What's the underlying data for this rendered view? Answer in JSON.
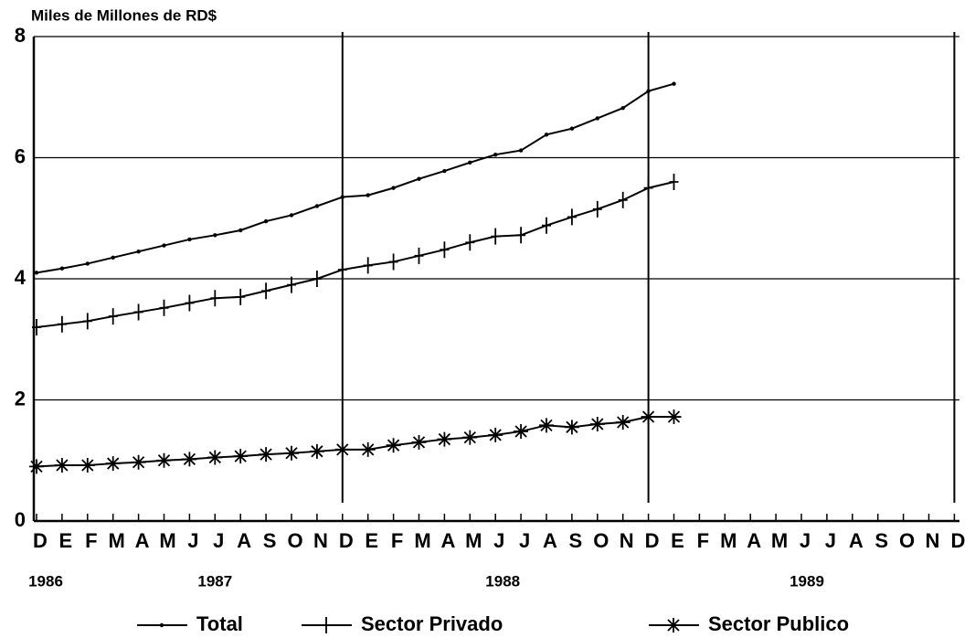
{
  "chart_data": {
    "type": "line",
    "title": "Miles de Millones de RD$",
    "categories": [
      "D",
      "E",
      "F",
      "M",
      "A",
      "M",
      "J",
      "J",
      "A",
      "S",
      "O",
      "N",
      "D",
      "E",
      "F",
      "M",
      "A",
      "M",
      "J",
      "J",
      "A",
      "S",
      "O",
      "N",
      "D",
      "E",
      "F",
      "M",
      "A",
      "M",
      "J",
      "J",
      "A",
      "S",
      "O",
      "N",
      "D"
    ],
    "year_labels": [
      "1986",
      "1987",
      "1988",
      "1989"
    ],
    "series": [
      {
        "name": "Total",
        "color": "#000000",
        "marker": "dot",
        "values": [
          4.1,
          4.17,
          4.25,
          4.35,
          4.45,
          4.55,
          4.65,
          4.72,
          4.8,
          4.95,
          5.05,
          5.2,
          5.35,
          5.38,
          5.5,
          5.65,
          5.78,
          5.92,
          6.05,
          6.12,
          6.38,
          6.48,
          6.65,
          6.82,
          7.1,
          7.22,
          null,
          null,
          null,
          null,
          null,
          null,
          null,
          null,
          null,
          null,
          null
        ]
      },
      {
        "name": "Sector Privado",
        "color": "#000000",
        "marker": "plus",
        "values": [
          3.2,
          3.25,
          3.3,
          3.38,
          3.45,
          3.52,
          3.6,
          3.68,
          3.7,
          3.8,
          3.9,
          4.0,
          4.15,
          4.22,
          4.28,
          4.38,
          4.48,
          4.6,
          4.7,
          4.72,
          4.88,
          5.02,
          5.15,
          5.3,
          5.5,
          5.6,
          null,
          null,
          null,
          null,
          null,
          null,
          null,
          null,
          null,
          null,
          null
        ]
      },
      {
        "name": "Sector Publico",
        "color": "#000000",
        "marker": "star",
        "values": [
          0.9,
          0.92,
          0.92,
          0.95,
          0.97,
          1.0,
          1.02,
          1.05,
          1.07,
          1.1,
          1.12,
          1.15,
          1.18,
          1.18,
          1.25,
          1.3,
          1.35,
          1.38,
          1.42,
          1.48,
          1.58,
          1.55,
          1.6,
          1.63,
          1.72,
          1.72,
          null,
          null,
          null,
          null,
          null,
          null,
          null,
          null,
          null,
          null,
          null
        ]
      }
    ],
    "ylim": [
      0,
      8
    ],
    "yticks": [
      0,
      2,
      4,
      6,
      8
    ],
    "grid": true
  }
}
